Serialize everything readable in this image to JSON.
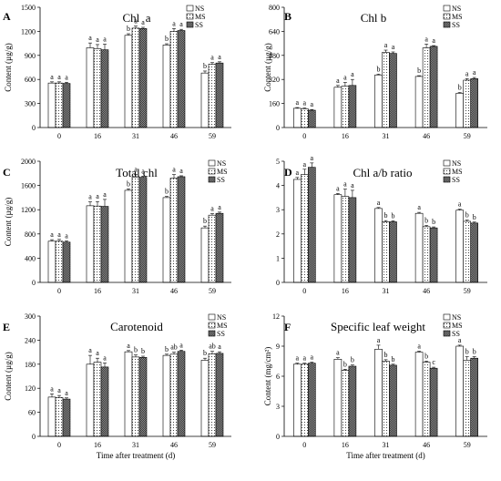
{
  "xlabel": "Time after treatment (d)",
  "patterns": {
    "NS": "solid",
    "MS": "dotted",
    "SS": "dense"
  },
  "chart_data": [
    {
      "type": "bar",
      "letter": "A",
      "title": "Chl  a",
      "ylabel": "Content (µg/g)",
      "ylim": [
        0,
        1500
      ],
      "yticks": [
        0,
        300,
        600,
        900,
        1200,
        1500
      ],
      "categories": [
        "0",
        "16",
        "31",
        "46",
        "59"
      ],
      "legend": [
        "NS",
        "MS",
        "SS"
      ],
      "series": [
        {
          "name": "NS",
          "values": [
            555,
            995,
            1150,
            1030,
            680
          ],
          "errors": [
            15,
            60,
            20,
            15,
            25
          ],
          "labels": [
            "a",
            "a",
            "b",
            "b",
            "b"
          ]
        },
        {
          "name": "MS",
          "values": [
            555,
            985,
            1240,
            1200,
            790
          ],
          "errors": [
            15,
            50,
            25,
            35,
            20
          ],
          "labels": [
            "a",
            "a",
            "a",
            "a",
            "a"
          ]
        },
        {
          "name": "SS",
          "values": [
            550,
            970,
            1235,
            1210,
            805
          ],
          "errors": [
            15,
            70,
            15,
            15,
            15
          ],
          "labels": [
            "a",
            "a",
            "a",
            "a",
            "a"
          ]
        }
      ]
    },
    {
      "type": "bar",
      "letter": "B",
      "title": "Chl b",
      "ylabel": "Content (µg/g)",
      "ylim": [
        0,
        800
      ],
      "yticks": [
        0,
        160,
        320,
        480,
        640,
        800
      ],
      "categories": [
        "0",
        "16",
        "31",
        "46",
        "59"
      ],
      "legend": [
        "NS",
        "MS",
        "SS"
      ],
      "series": [
        {
          "name": "NS",
          "values": [
            128,
            268,
            350,
            340,
            228
          ],
          "errors": [
            5,
            12,
            5,
            5,
            5
          ],
          "labels": [
            "a",
            "a",
            "b",
            "b",
            "b"
          ]
        },
        {
          "name": "MS",
          "values": [
            125,
            275,
            500,
            530,
            315
          ],
          "errors": [
            5,
            25,
            15,
            25,
            10
          ],
          "labels": [
            "a",
            "a",
            "a",
            "a",
            "a"
          ]
        },
        {
          "name": "SS",
          "values": [
            115,
            280,
            493,
            540,
            325
          ],
          "errors": [
            5,
            40,
            10,
            5,
            8
          ],
          "labels": [
            "a",
            "a",
            "a",
            "a",
            "a"
          ]
        }
      ]
    },
    {
      "type": "bar",
      "letter": "C",
      "title": "Total chl",
      "ylabel": "Content (µg/g)",
      "ylim": [
        0,
        2000
      ],
      "yticks": [
        0,
        400,
        800,
        1200,
        1600,
        2000
      ],
      "categories": [
        "0",
        "16",
        "31",
        "46",
        "59"
      ],
      "legend": [
        "NS",
        "MS",
        "SS"
      ],
      "series": [
        {
          "name": "NS",
          "values": [
            680,
            1265,
            1520,
            1400,
            900
          ],
          "errors": [
            25,
            65,
            25,
            20,
            30
          ],
          "labels": [
            "a",
            "a",
            "b",
            "b",
            "b"
          ]
        },
        {
          "name": "MS",
          "values": [
            680,
            1260,
            1740,
            1720,
            1110
          ],
          "errors": [
            30,
            75,
            40,
            60,
            25
          ],
          "labels": [
            "a",
            "a",
            "a",
            "a",
            "a"
          ]
        },
        {
          "name": "SS",
          "values": [
            665,
            1255,
            1735,
            1745,
            1140
          ],
          "errors": [
            20,
            115,
            20,
            15,
            20
          ],
          "labels": [
            "a",
            "a",
            "a",
            "a",
            "a"
          ]
        }
      ]
    },
    {
      "type": "bar",
      "letter": "D",
      "title": "Chl a/b ratio",
      "ylabel": "",
      "ylim": [
        0,
        5
      ],
      "yticks": [
        0,
        1,
        2,
        3,
        4,
        5
      ],
      "categories": [
        "0",
        "16",
        "31",
        "46",
        "59"
      ],
      "legend": [
        "NS",
        "MS",
        "SS"
      ],
      "series": [
        {
          "name": "NS",
          "values": [
            4.25,
            3.62,
            3.05,
            2.85,
            2.98
          ],
          "errors": [
            0.08,
            0.05,
            0.04,
            0.04,
            0.04
          ],
          "labels": [
            "a",
            "a",
            "a",
            "a",
            "a"
          ]
        },
        {
          "name": "MS",
          "values": [
            4.45,
            3.55,
            2.5,
            2.3,
            2.52
          ],
          "errors": [
            0.22,
            0.3,
            0.05,
            0.05,
            0.05
          ],
          "labels": [
            "a",
            "a",
            "b",
            "b",
            "b"
          ]
        },
        {
          "name": "SS",
          "values": [
            4.75,
            3.5,
            2.5,
            2.25,
            2.45
          ],
          "errors": [
            0.18,
            0.3,
            0.04,
            0.04,
            0.04
          ],
          "labels": [
            "a",
            "a",
            "b",
            "b",
            "b"
          ]
        }
      ]
    },
    {
      "type": "bar",
      "letter": "E",
      "title": "Carotenoid",
      "ylabel": "Content (µg/g)",
      "ylim": [
        0,
        300
      ],
      "yticks": [
        0,
        60,
        120,
        180,
        240,
        300
      ],
      "categories": [
        "0",
        "16",
        "31",
        "46",
        "59"
      ],
      "legend": [
        "NS",
        "MS",
        "SS"
      ],
      "series": [
        {
          "name": "NS",
          "values": [
            98,
            180,
            211,
            202,
            190
          ],
          "errors": [
            8,
            22,
            3,
            3,
            5
          ],
          "labels": [
            "a",
            "a",
            "a",
            "b",
            "b"
          ]
        },
        {
          "name": "MS",
          "values": [
            97,
            185,
            198,
            205,
            206
          ],
          "errors": [
            5,
            10,
            5,
            5,
            6
          ],
          "labels": [
            "a",
            "a",
            "b",
            "ab",
            "ab"
          ]
        },
        {
          "name": "SS",
          "values": [
            93,
            173,
            197,
            212,
            207
          ],
          "errors": [
            3,
            10,
            3,
            3,
            4
          ],
          "labels": [
            "a",
            "a",
            "b",
            "a",
            "a"
          ]
        }
      ]
    },
    {
      "type": "bar",
      "letter": "F",
      "title": "Specific leaf weight",
      "ylabel": "Content (mg/cm²)",
      "ylim": [
        0,
        12
      ],
      "yticks": [
        0,
        3,
        6,
        9,
        12
      ],
      "categories": [
        "0",
        "16",
        "31",
        "46",
        "59"
      ],
      "legend": [
        "NS",
        "MS",
        "SS"
      ],
      "series": [
        {
          "name": "NS",
          "values": [
            7.2,
            7.7,
            8.7,
            8.4,
            9.0
          ],
          "errors": [
            0.1,
            0.15,
            0.4,
            0.1,
            0.1
          ],
          "labels": [
            "a",
            "a",
            "a",
            "a",
            "a"
          ]
        },
        {
          "name": "MS",
          "values": [
            7.2,
            6.6,
            7.5,
            7.4,
            7.6
          ],
          "errors": [
            0.1,
            0.1,
            0.15,
            0.1,
            0.35
          ],
          "labels": [
            "a",
            "b",
            "b",
            "b",
            "b"
          ]
        },
        {
          "name": "SS",
          "values": [
            7.3,
            7.0,
            7.1,
            6.8,
            7.8
          ],
          "errors": [
            0.1,
            0.12,
            0.1,
            0.1,
            0.15
          ],
          "labels": [
            "a",
            "b",
            "b",
            "c",
            "b"
          ]
        }
      ]
    }
  ]
}
